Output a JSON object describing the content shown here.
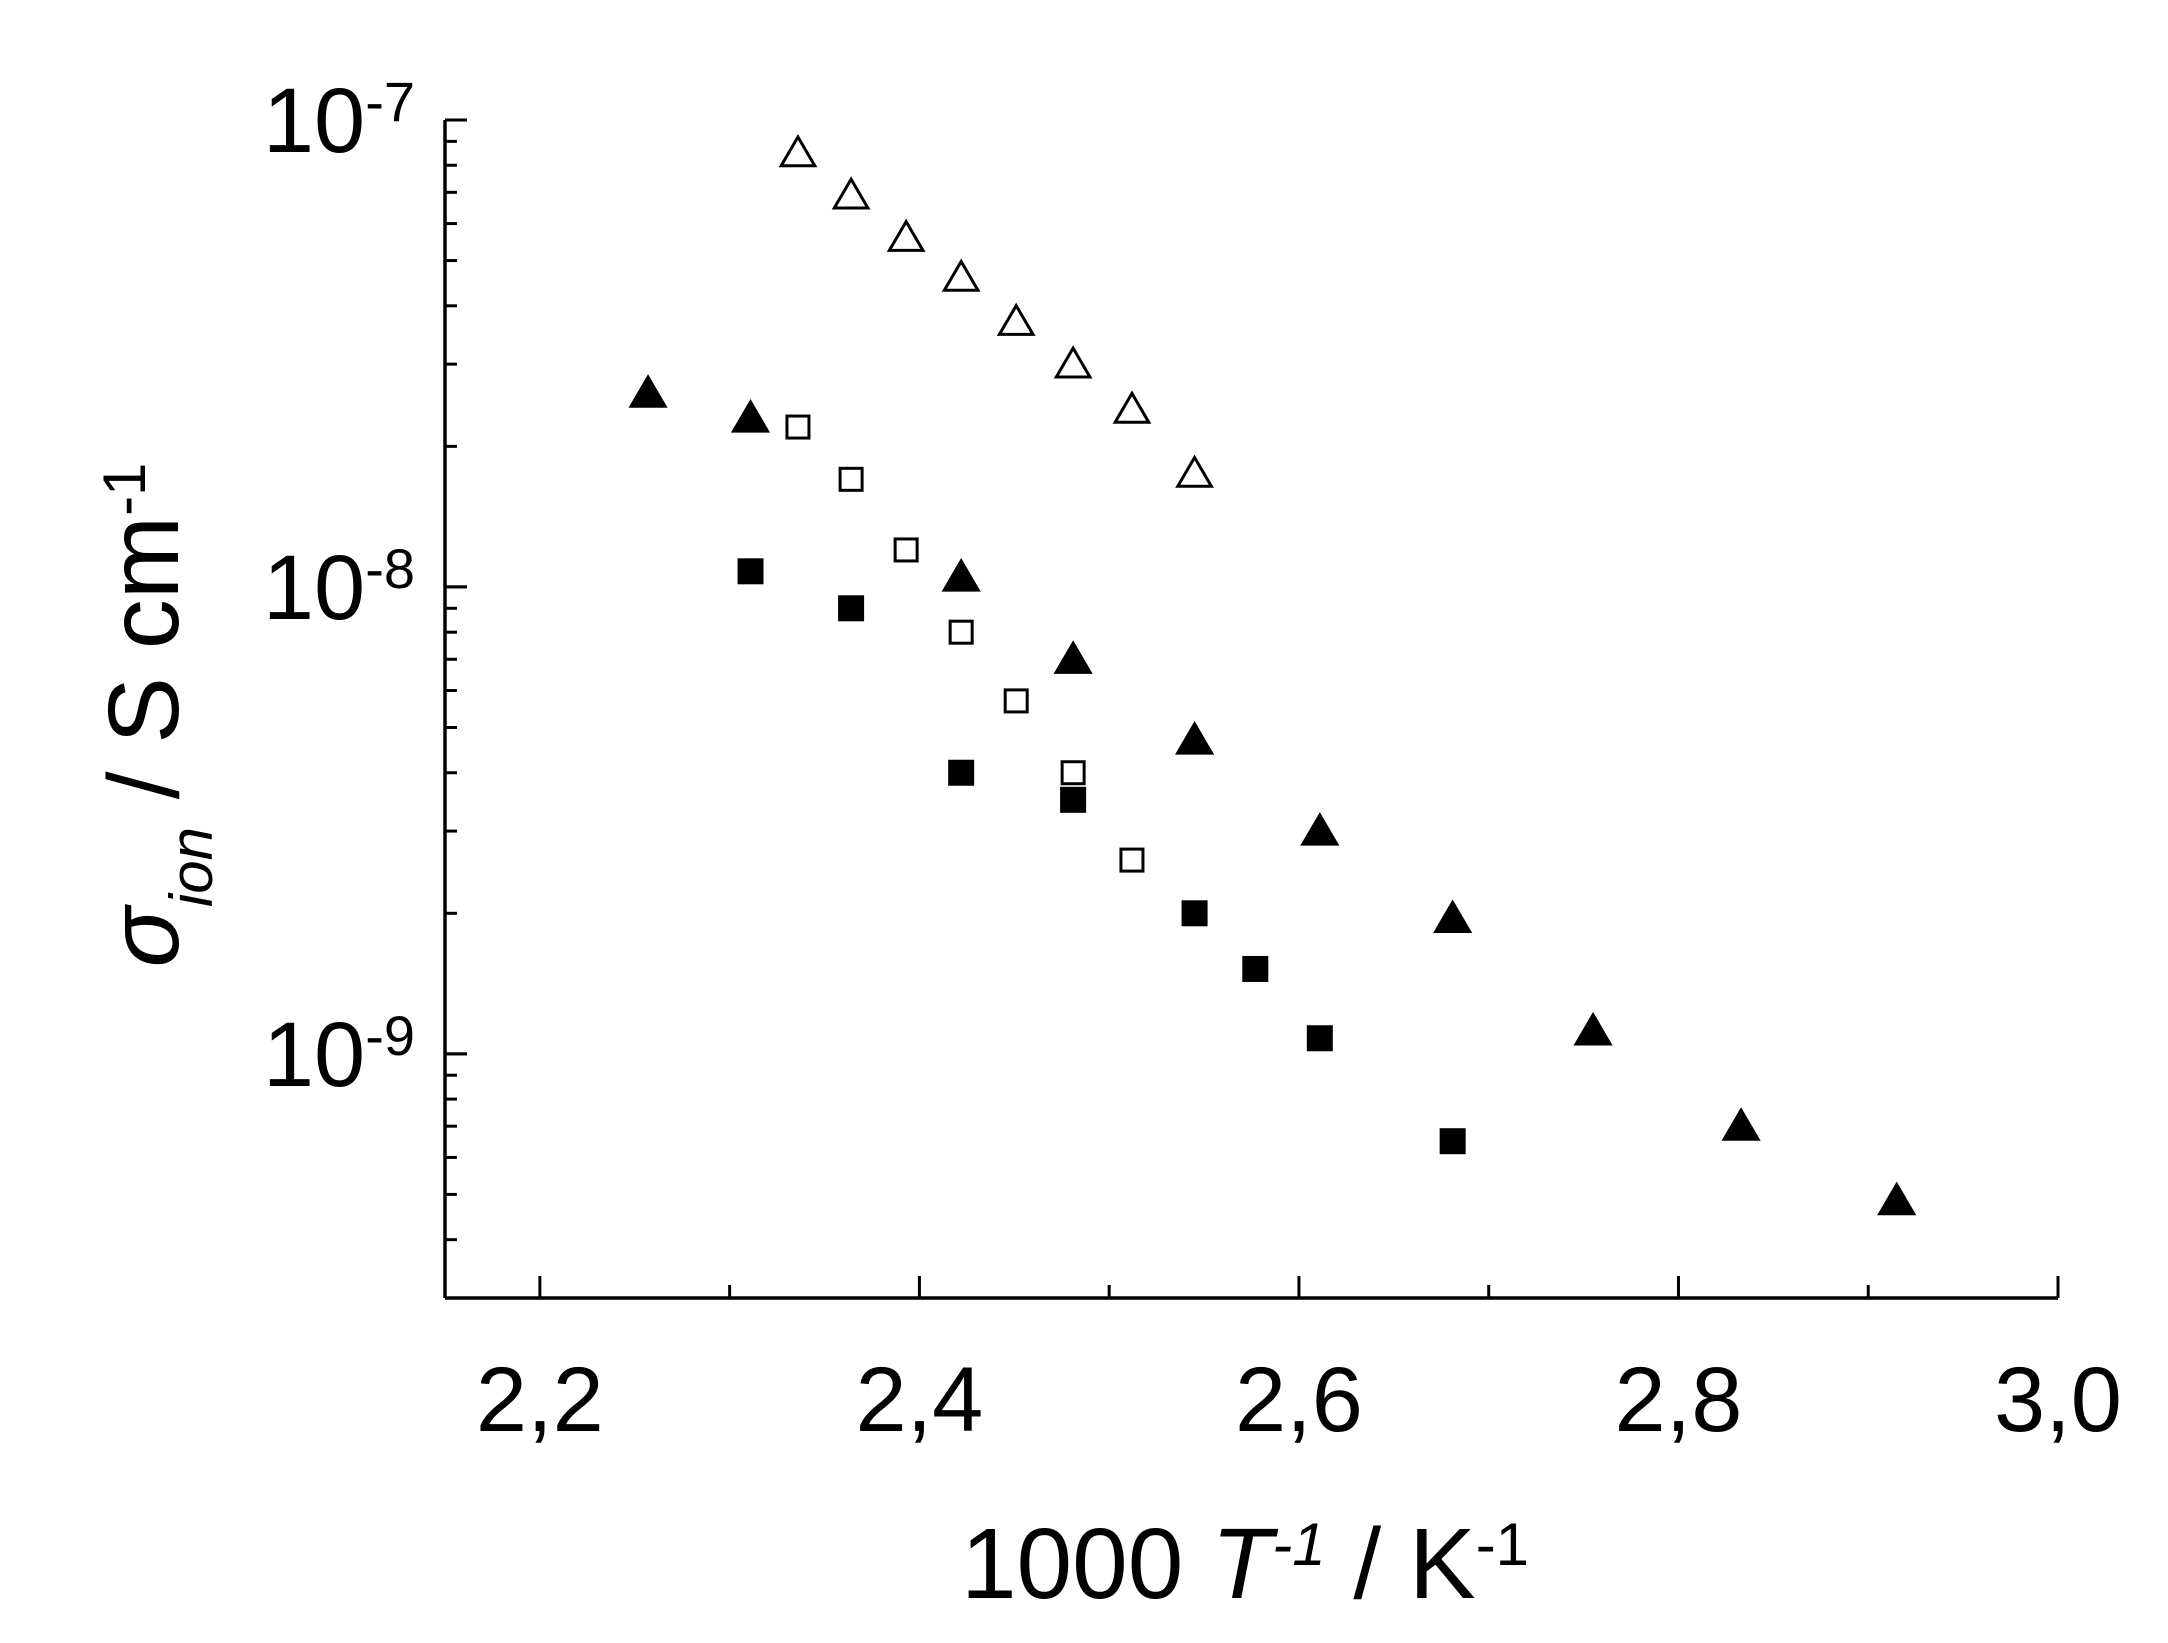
{
  "chart_data": {
    "type": "scatter",
    "x_axis": {
      "min": 2.15,
      "max": 3.0,
      "major_ticks": [
        2.2,
        2.4,
        2.6,
        2.8,
        3.0
      ],
      "tick_labels": [
        "2,2",
        "2,4",
        "2,6",
        "2,8",
        "3,0"
      ],
      "label_parts": [
        "1000 ",
        "T",
        "-1",
        " / K",
        "-1"
      ]
    },
    "y_axis": {
      "scale": "log",
      "min": 3e-10,
      "max": 1e-07,
      "major_ticks": [
        1e-09,
        1e-08,
        1e-07
      ],
      "tick_label_base": "10",
      "tick_label_exponents": [
        "-9",
        "-8",
        "-7"
      ],
      "label_parts": [
        "σ",
        "ion",
        " / S cm",
        "-1"
      ]
    },
    "grid": false,
    "legend": "none",
    "series": [
      {
        "marker": "triangle-open",
        "x": [
          2.336,
          2.364,
          2.393,
          2.422,
          2.451,
          2.481,
          2.512,
          2.545
        ],
        "y": [
          8.5e-08,
          6.9e-08,
          5.6e-08,
          4.6e-08,
          3.7e-08,
          3e-08,
          2.4e-08,
          1.75e-08
        ]
      },
      {
        "marker": "triangle-filled",
        "x": [
          2.257,
          2.311,
          2.422,
          2.481,
          2.545,
          2.611,
          2.681,
          2.755,
          2.833,
          2.915
        ],
        "y": [
          2.6e-08,
          2.3e-08,
          1.05e-08,
          7e-09,
          4.7e-09,
          3e-09,
          1.95e-09,
          1.12e-09,
          7e-10,
          4.85e-10
        ]
      },
      {
        "marker": "square-open",
        "x": [
          2.336,
          2.364,
          2.393,
          2.422,
          2.451,
          2.481,
          2.512
        ],
        "y": [
          2.2e-08,
          1.7e-08,
          1.2e-08,
          8e-09,
          5.7e-09,
          4e-09,
          2.6e-09
        ]
      },
      {
        "marker": "square-filled",
        "x": [
          2.311,
          2.364,
          2.422,
          2.481,
          2.545,
          2.577,
          2.611,
          2.681
        ],
        "y": [
          1.08e-08,
          9e-09,
          4e-09,
          3.5e-09,
          2e-09,
          1.52e-09,
          1.08e-09,
          6.5e-10
        ]
      }
    ]
  }
}
